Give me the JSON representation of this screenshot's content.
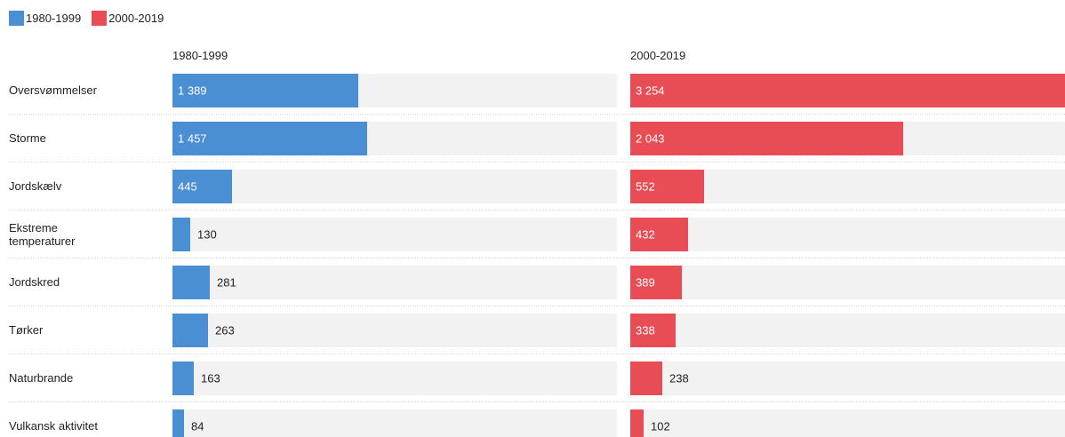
{
  "legend": [
    {
      "label": "1980-1999",
      "color": "#4a8fd4"
    },
    {
      "label": "2000-2019",
      "color": "#e84c55"
    }
  ],
  "chart_data": {
    "type": "bar",
    "categories": [
      "Oversvømmelser",
      "Storme",
      "Jordskælv",
      "Ekstreme temperaturer",
      "Jordskred",
      "Tørker",
      "Naturbrande",
      "Vulkansk aktivitet"
    ],
    "series": [
      {
        "name": "1980-1999",
        "color": "#4a8fd4",
        "values": [
          1389,
          1457,
          445,
          130,
          281,
          263,
          163,
          84
        ],
        "labels": [
          "1 389",
          "1 457",
          "445",
          "130",
          "281",
          "263",
          "163",
          "84"
        ]
      },
      {
        "name": "2000-2019",
        "color": "#e84c55",
        "values": [
          3254,
          2043,
          552,
          432,
          389,
          338,
          238,
          102
        ],
        "labels": [
          "3 254",
          "2 043",
          "552",
          "432",
          "389",
          "338",
          "238",
          "102"
        ]
      }
    ],
    "xlim": [
      0,
      3254
    ],
    "legend_position": "top-left"
  }
}
